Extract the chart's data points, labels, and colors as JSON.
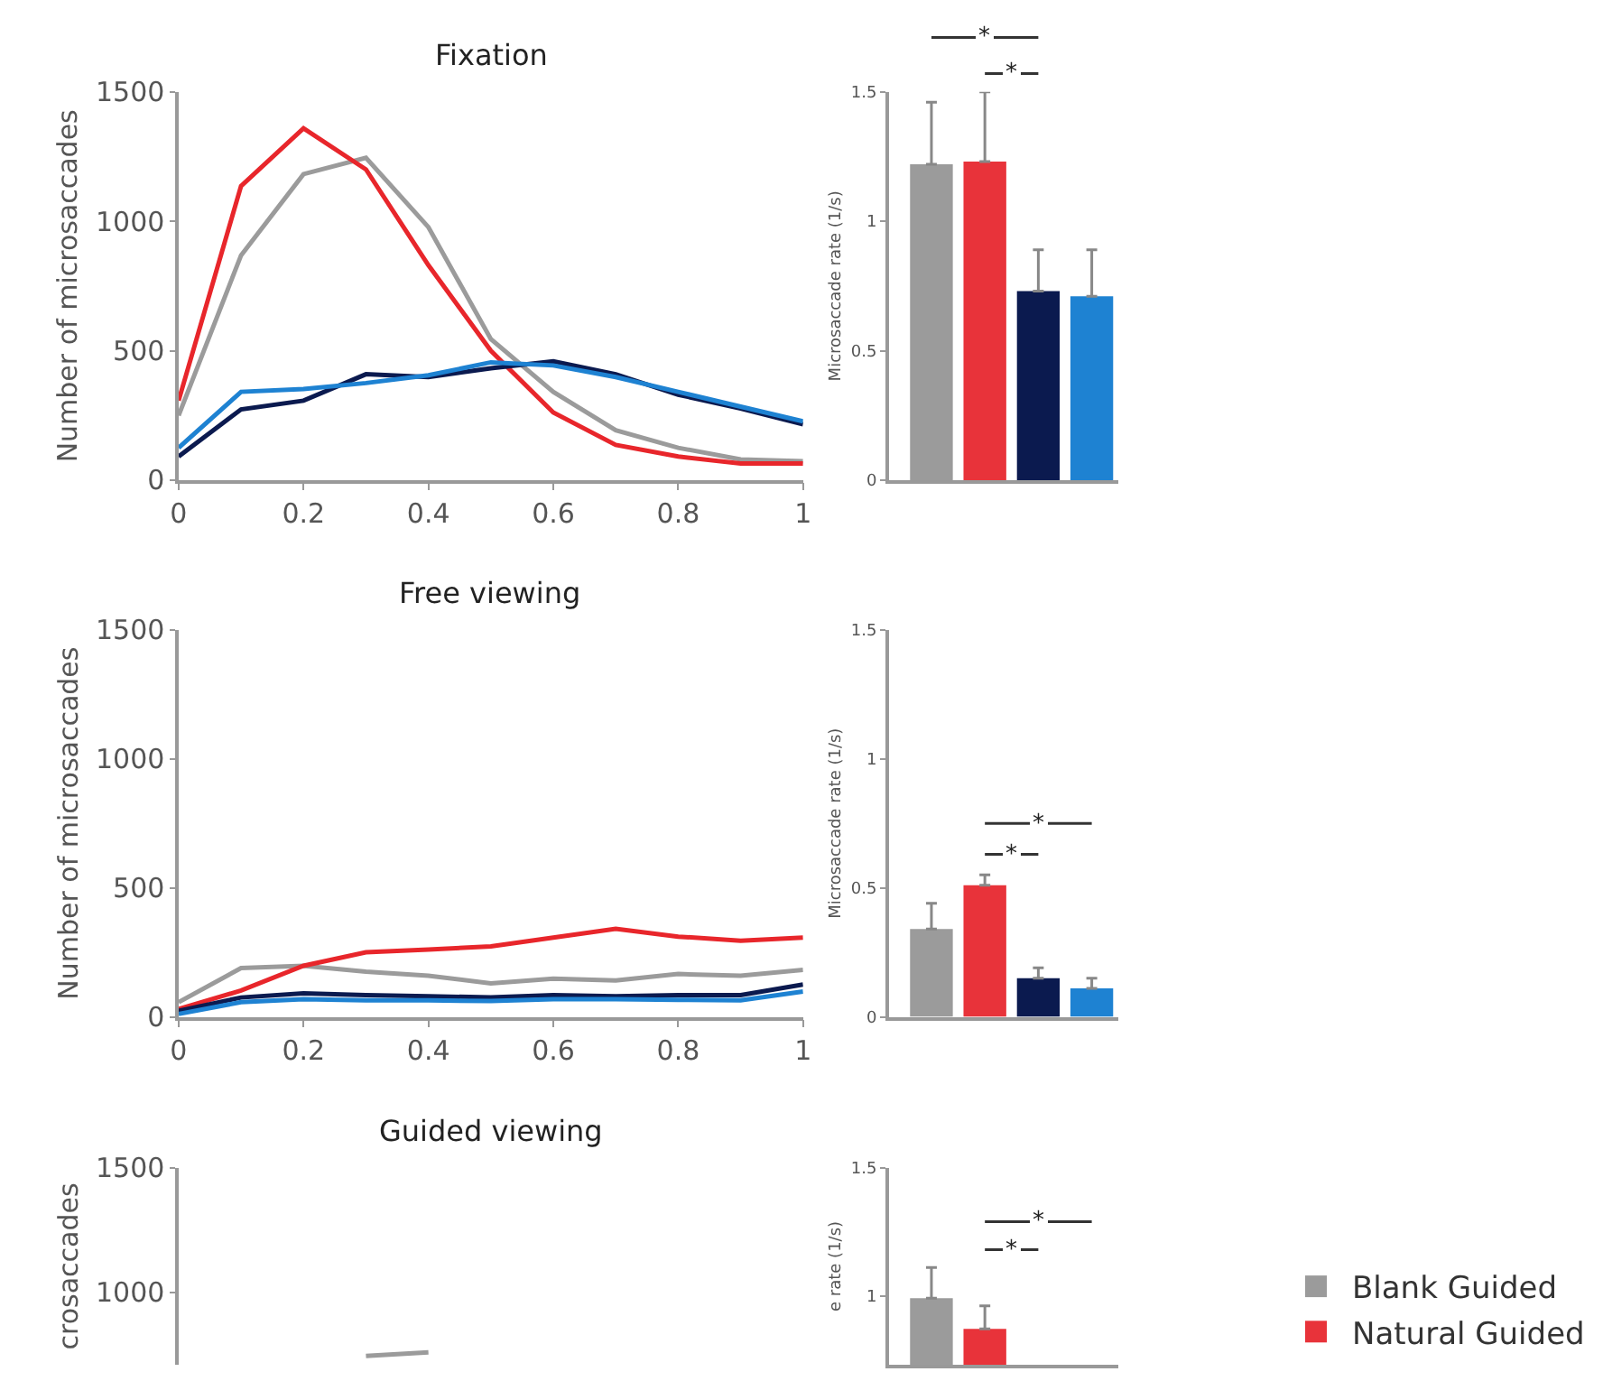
{
  "chart_data": [
    {
      "type": "line",
      "title": "Fixation",
      "ylabel": "Number of microsaccades",
      "x": [
        0,
        0.1,
        0.2,
        0.3,
        0.4,
        0.5,
        0.6,
        0.7,
        0.8,
        0.9,
        1
      ],
      "xlim": [
        0,
        1
      ],
      "xticks": [
        0,
        0.2,
        0.4,
        0.6,
        0.8,
        1
      ],
      "ylim": [
        0,
        1500
      ],
      "yticks": [
        0,
        500,
        1000,
        1500
      ],
      "series": [
        {
          "color": "#9b9b9b",
          "values": [
            250,
            868,
            1182,
            1245,
            977,
            545,
            341,
            193,
            125,
            80,
            73
          ]
        },
        {
          "color": "#e8262b",
          "values": [
            307,
            1136,
            1359,
            1200,
            830,
            500,
            261,
            136,
            91,
            64,
            64
          ]
        },
        {
          "color": "#0b1a4f",
          "values": [
            91,
            273,
            307,
            409,
            398,
            432,
            459,
            409,
            330,
            277,
            216
          ]
        },
        {
          "color": "#1e82d2",
          "values": [
            125,
            341,
            352,
            375,
            405,
            455,
            443,
            398,
            341,
            284,
            227
          ]
        }
      ]
    },
    {
      "type": "bar",
      "ylabel": "Microsaccade rate (1/s)",
      "categories": [
        null,
        null,
        null,
        null
      ],
      "ylim": [
        0,
        1.5
      ],
      "yticks": [
        0,
        0.5,
        1,
        1.5
      ],
      "annotations": [
        "*",
        "*"
      ],
      "values": [
        1.22,
        1.23,
        0.73,
        0.71
      ],
      "colors": [
        "#9b9b9b",
        "#e8333a",
        "#0b1a4f",
        "#1e82d2"
      ],
      "errors": [
        0.24,
        0.27,
        0.16,
        0.18
      ]
    },
    {
      "type": "line",
      "title": "Free viewing",
      "ylabel": "Number of microsaccades",
      "x": [
        0,
        0.1,
        0.2,
        0.3,
        0.4,
        0.5,
        0.6,
        0.7,
        0.8,
        0.9,
        1
      ],
      "xlim": [
        0,
        1
      ],
      "xticks": [
        0,
        0.2,
        0.4,
        0.6,
        0.8,
        1
      ],
      "ylim": [
        0,
        1500
      ],
      "yticks": [
        0,
        500,
        1000,
        1500
      ],
      "series": [
        {
          "color": "#9b9b9b",
          "values": [
            57,
            189,
            198,
            175,
            159,
            130,
            148,
            141,
            166,
            159,
            182
          ]
        },
        {
          "color": "#e8262b",
          "values": [
            30,
            102,
            198,
            250,
            261,
            273,
            307,
            341,
            311,
            295,
            307
          ]
        },
        {
          "color": "#0b1a4f",
          "values": [
            23,
            75,
            91,
            84,
            80,
            75,
            84,
            80,
            84,
            84,
            125
          ]
        },
        {
          "color": "#1e82d2",
          "values": [
            11,
            57,
            68,
            64,
            64,
            61,
            68,
            68,
            66,
            64,
            98
          ]
        }
      ]
    },
    {
      "type": "bar",
      "ylabel": "Microsaccade rate (1/s)",
      "categories": [
        null,
        null,
        null,
        null
      ],
      "ylim": [
        0,
        1.5
      ],
      "yticks": [
        0,
        0.5,
        1,
        1.5
      ],
      "annotations": [
        "*",
        "*"
      ],
      "values": [
        0.34,
        0.51,
        0.15,
        0.11
      ],
      "colors": [
        "#9b9b9b",
        "#e8333a",
        "#0b1a4f",
        "#1e82d2"
      ],
      "errors": [
        0.1,
        0.04,
        0.04,
        0.04
      ]
    },
    {
      "type": "line",
      "title": "Guided viewing",
      "ylabel": "crosaccades",
      "x": [
        0.3,
        0.4
      ],
      "xlim": [
        0,
        1
      ],
      "ylim": [
        710,
        1500
      ],
      "yticks": [
        1000,
        1500
      ],
      "tick_labels": "y",
      "series": [
        {
          "color": "#9b9b9b",
          "values": [
            745,
            760
          ]
        }
      ]
    },
    {
      "type": "bar",
      "ylabel": "e rate (1/s)",
      "categories": [
        null,
        null,
        null,
        null
      ],
      "ylim": [
        0.73,
        1.5
      ],
      "yticks": [
        1,
        1.5
      ],
      "annotations": [
        "*",
        "*"
      ],
      "legend": "right",
      "series": [
        {
          "name": "Blank Guided",
          "color": "#9b9b9b",
          "values": [
            0.99,
            null,
            null,
            null
          ],
          "errors": [
            0.12,
            null,
            null,
            null
          ]
        },
        {
          "name": "Natural Guided",
          "color": "#e8333a",
          "values": [
            null,
            0.87,
            null,
            null
          ],
          "errors": [
            null,
            0.09,
            null,
            null
          ]
        }
      ]
    }
  ]
}
